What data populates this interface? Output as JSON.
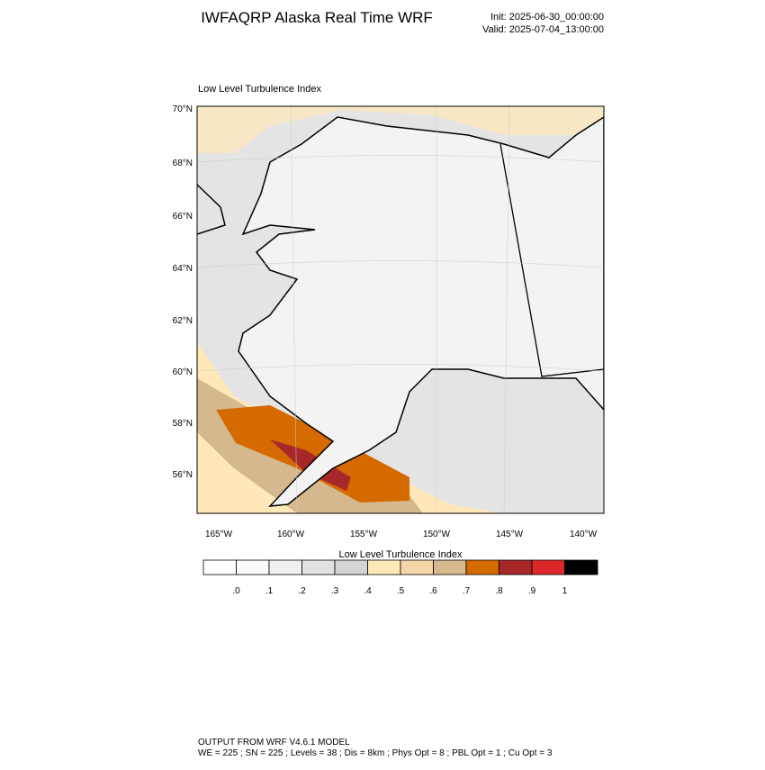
{
  "header": {
    "title": "IWFAQRP Alaska Real Time WRF",
    "init": "Init: 2025-06-30_00:00:00",
    "valid": "Valid: 2025-07-04_13:00:00"
  },
  "map": {
    "title": "Low Level Turbulence Index",
    "lat_labels": [
      "70°N",
      "68°N",
      "66°N",
      "64°N",
      "62°N",
      "60°N",
      "58°N",
      "56°N"
    ],
    "lon_labels": [
      "165°W",
      "160°W",
      "155°W",
      "150°W",
      "145°W",
      "140°W"
    ]
  },
  "colorbar": {
    "title": "Low Level Turbulence Index",
    "colors": [
      "#ffffff",
      "#f9f9f9",
      "#f0f0f0",
      "#e2e2e2",
      "#d4d4d4",
      "#ffe8b8",
      "#f5d6a8",
      "#d6b88f",
      "#d46a00",
      "#a8282a",
      "#dc2828",
      "#000000"
    ],
    "labels": [
      ".0",
      ".1",
      ".2",
      ".3",
      ".4",
      ".5",
      ".6",
      ".7",
      ".8",
      ".9",
      "1"
    ]
  },
  "footer": {
    "line1": "OUTPUT FROM WRF V4.6.1 MODEL",
    "line2": "WE = 225 ; SN = 225 ; Levels = 38 ; Dis = 8km ; Phys Opt = 8 ; PBL Opt = 1 ; Cu Opt = 3"
  }
}
